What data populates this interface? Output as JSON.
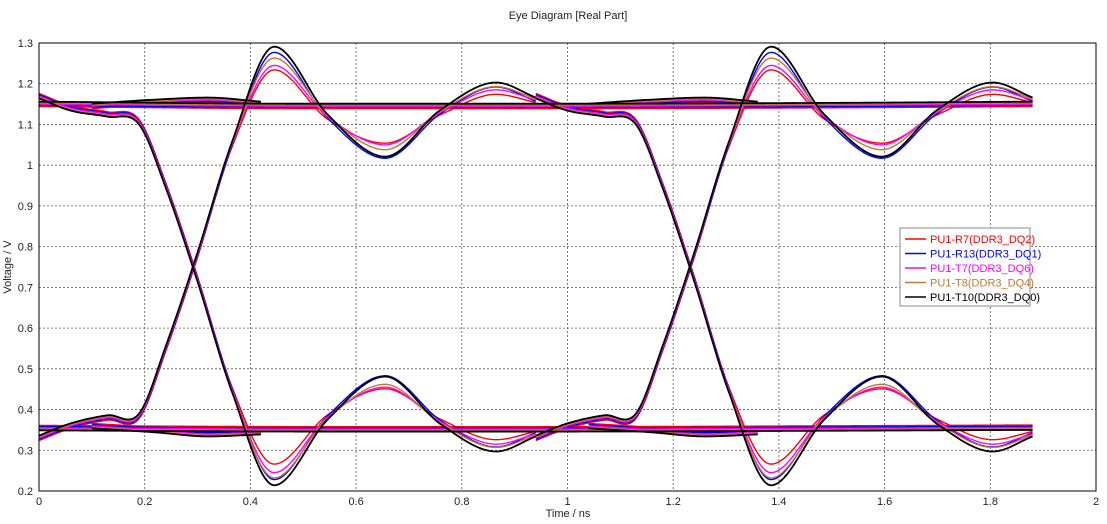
{
  "chart_data": {
    "type": "line",
    "title": "Eye Diagram [Real Part]",
    "xlabel": "Time / ns",
    "ylabel": "Voltage / V",
    "xlim": [
      0,
      2
    ],
    "ylim": [
      0.2,
      1.3
    ],
    "xticks": [
      "0",
      "0.2",
      "0.4",
      "0.6",
      "0.8",
      "1",
      "1.2",
      "1.4",
      "1.6",
      "1.8",
      "2"
    ],
    "yticks": [
      "0.2",
      "0.3",
      "0.4",
      "0.5",
      "0.6",
      "0.7",
      "0.8",
      "0.9",
      "1",
      "1.1",
      "1.2",
      "1.3"
    ],
    "grid": true,
    "legend_position": "right",
    "series": [
      {
        "name": "PU1-R7(DDR3_DQ2)",
        "color": "#ff0000",
        "high_peak": 1.24,
        "high_trough": 1.06,
        "low_trough": 0.26,
        "low_peak": 0.445,
        "high_second_peak": 1.18,
        "low_second_trough": 0.32
      },
      {
        "name": "PU1-R13(DDR3_DQ1)",
        "color": "#0000ff",
        "high_peak": 1.28,
        "high_trough": 1.02,
        "low_trough": 0.225,
        "low_peak": 0.48,
        "high_second_peak": 1.195,
        "low_second_trough": 0.305
      },
      {
        "name": "PU1-T7(DDR3_DQ6)",
        "color": "#ff00ff",
        "high_peak": 1.245,
        "high_trough": 1.05,
        "low_trough": 0.245,
        "low_peak": 0.455,
        "high_second_peak": 1.185,
        "low_second_trough": 0.315
      },
      {
        "name": "PU1-T8(DDR3_DQ4)",
        "color": "#c07830",
        "high_peak": 1.26,
        "high_trough": 1.035,
        "low_trough": 0.235,
        "low_peak": 0.465,
        "high_second_peak": 1.19,
        "low_second_trough": 0.31
      },
      {
        "name": "PU1-T10(DDR3_DQ0)",
        "color": "#000000",
        "high_peak": 1.285,
        "high_trough": 1.015,
        "low_trough": 0.22,
        "low_peak": 0.487,
        "high_second_peak": 1.197,
        "low_second_trough": 0.303
      }
    ]
  }
}
